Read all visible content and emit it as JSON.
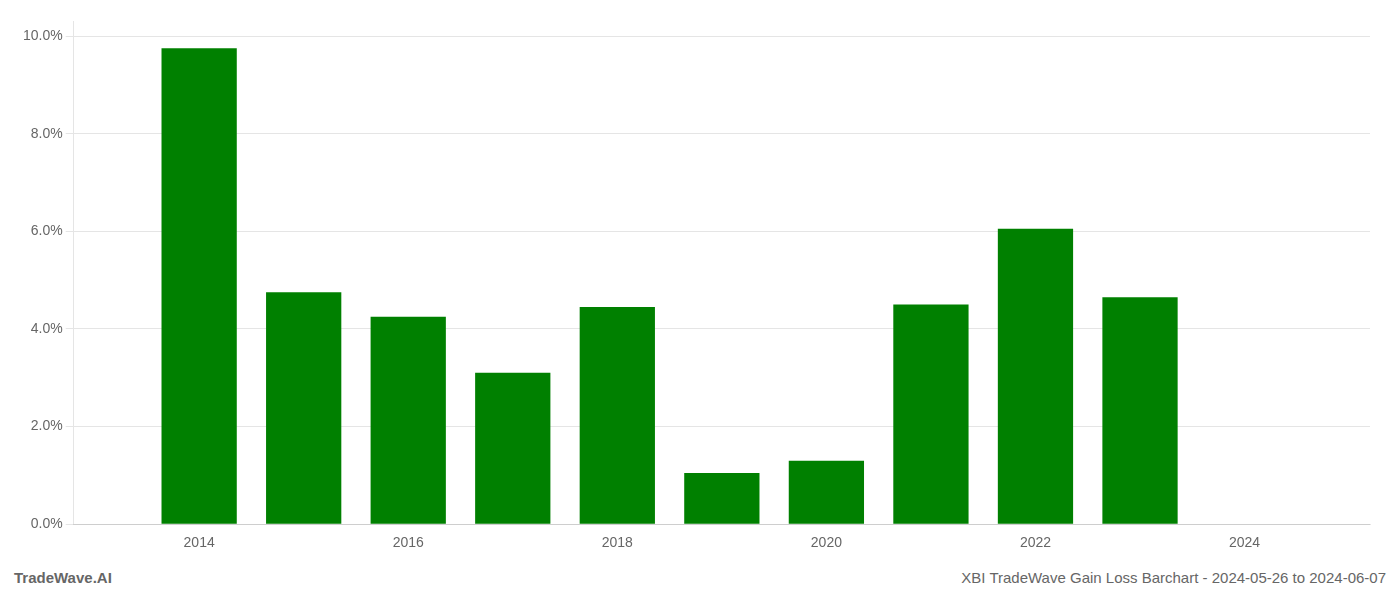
{
  "chart_data": {
    "type": "bar",
    "x": [
      2014,
      2015,
      2016,
      2017,
      2018,
      2019,
      2020,
      2021,
      2022,
      2023
    ],
    "values": [
      0.0975,
      0.0475,
      0.0425,
      0.031,
      0.0445,
      0.0105,
      0.013,
      0.045,
      0.0605,
      0.0465
    ],
    "color": "#008000",
    "xlim": [
      2012.8,
      2025.2
    ],
    "xticks": [
      2014,
      2016,
      2018,
      2020,
      2022,
      2024
    ],
    "ylim": [
      0,
      0.103
    ],
    "yticks": [
      {
        "value": 0.0,
        "label": "0.0%"
      },
      {
        "value": 0.02,
        "label": "2.0%"
      },
      {
        "value": 0.04,
        "label": "4.0%"
      },
      {
        "value": 0.06,
        "label": "6.0%"
      },
      {
        "value": 0.1,
        "label": "10.0%"
      },
      {
        "value": 0.08,
        "label": "8.0%"
      }
    ],
    "grid": "y",
    "annotations": [
      "TradeWave.AI",
      "XBI TradeWave Gain Loss Barchart - 2024-05-26 to 2024-06-07"
    ]
  }
}
